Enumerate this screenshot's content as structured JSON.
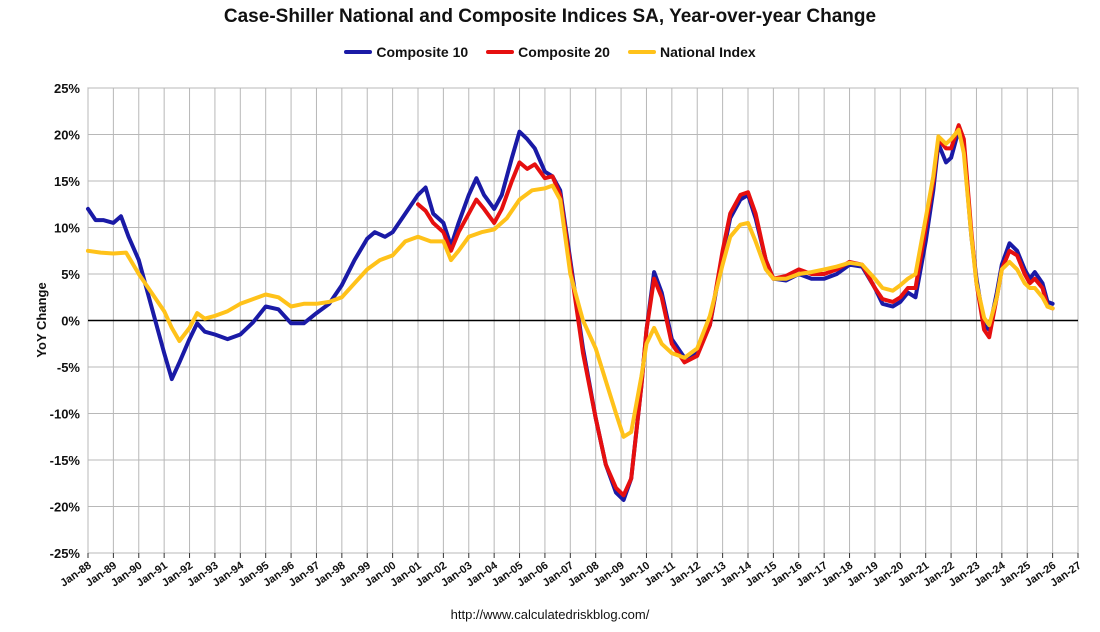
{
  "chart_data": {
    "type": "line",
    "title": "Case-Shiller National and Composite Indices SA, Year-over-year Change",
    "ylabel": "YoY Change",
    "xlabel": "",
    "source": "http://www.calculatedriskblog.com/",
    "ylim": [
      -25,
      25
    ],
    "xlim": [
      1988.0,
      2027.0
    ],
    "y_ticks": [
      "25%",
      "20%",
      "15%",
      "10%",
      "5%",
      "0%",
      "-5%",
      "-10%",
      "-15%",
      "-20%",
      "-25%"
    ],
    "x_ticks": [
      "Jan-88",
      "Jan-89",
      "Jan-90",
      "Jan-91",
      "Jan-92",
      "Jan-93",
      "Jan-94",
      "Jan-95",
      "Jan-96",
      "Jan-97",
      "Jan-98",
      "Jan-99",
      "Jan-00",
      "Jan-01",
      "Jan-02",
      "Jan-03",
      "Jan-04",
      "Jan-05",
      "Jan-06",
      "Jan-07",
      "Jan-08",
      "Jan-09",
      "Jan-10",
      "Jan-11",
      "Jan-12",
      "Jan-13",
      "Jan-14",
      "Jan-15",
      "Jan-16",
      "Jan-17",
      "Jan-18",
      "Jan-19",
      "Jan-20",
      "Jan-21",
      "Jan-22",
      "Jan-23",
      "Jan-24",
      "Jan-25",
      "Jan-26",
      "Jan-27"
    ],
    "grid": true,
    "legend_position": "top-center",
    "series": [
      {
        "name": "Composite 10",
        "color": "#1a1aa6",
        "points": [
          [
            1988.0,
            12.0
          ],
          [
            1988.3,
            10.8
          ],
          [
            1988.6,
            10.8
          ],
          [
            1989.0,
            10.5
          ],
          [
            1989.3,
            11.2
          ],
          [
            1989.6,
            9.0
          ],
          [
            1990.0,
            6.5
          ],
          [
            1990.3,
            3.5
          ],
          [
            1990.6,
            0.5
          ],
          [
            1991.0,
            -3.5
          ],
          [
            1991.3,
            -6.3
          ],
          [
            1991.6,
            -4.5
          ],
          [
            1992.0,
            -2.0
          ],
          [
            1992.3,
            -0.3
          ],
          [
            1992.6,
            -1.2
          ],
          [
            1993.0,
            -1.5
          ],
          [
            1993.5,
            -2.0
          ],
          [
            1994.0,
            -1.5
          ],
          [
            1994.5,
            -0.2
          ],
          [
            1995.0,
            1.5
          ],
          [
            1995.5,
            1.2
          ],
          [
            1996.0,
            -0.3
          ],
          [
            1996.5,
            -0.3
          ],
          [
            1997.0,
            0.8
          ],
          [
            1997.5,
            1.8
          ],
          [
            1998.0,
            3.8
          ],
          [
            1998.5,
            6.5
          ],
          [
            1999.0,
            8.8
          ],
          [
            1999.3,
            9.5
          ],
          [
            1999.7,
            9.0
          ],
          [
            2000.0,
            9.5
          ],
          [
            2000.5,
            11.5
          ],
          [
            2001.0,
            13.5
          ],
          [
            2001.3,
            14.3
          ],
          [
            2001.6,
            11.5
          ],
          [
            2002.0,
            10.5
          ],
          [
            2002.3,
            8.0
          ],
          [
            2002.6,
            10.5
          ],
          [
            2003.0,
            13.5
          ],
          [
            2003.3,
            15.3
          ],
          [
            2003.6,
            13.5
          ],
          [
            2004.0,
            12.0
          ],
          [
            2004.3,
            13.5
          ],
          [
            2004.7,
            17.5
          ],
          [
            2005.0,
            20.3
          ],
          [
            2005.3,
            19.5
          ],
          [
            2005.6,
            18.5
          ],
          [
            2006.0,
            16.0
          ],
          [
            2006.3,
            15.5
          ],
          [
            2006.6,
            14.0
          ],
          [
            2007.0,
            6.5
          ],
          [
            2007.5,
            -3.0
          ],
          [
            2008.0,
            -10.5
          ],
          [
            2008.4,
            -15.5
          ],
          [
            2008.8,
            -18.5
          ],
          [
            2009.1,
            -19.3
          ],
          [
            2009.4,
            -17.0
          ],
          [
            2009.8,
            -7.0
          ],
          [
            2010.0,
            -1.0
          ],
          [
            2010.3,
            5.2
          ],
          [
            2010.6,
            3.0
          ],
          [
            2011.0,
            -2.0
          ],
          [
            2011.5,
            -4.0
          ],
          [
            2012.0,
            -3.5
          ],
          [
            2012.5,
            -0.5
          ],
          [
            2013.0,
            7.0
          ],
          [
            2013.3,
            11.0
          ],
          [
            2013.7,
            13.0
          ],
          [
            2014.0,
            13.5
          ],
          [
            2014.3,
            11.0
          ],
          [
            2014.7,
            6.5
          ],
          [
            2015.0,
            4.5
          ],
          [
            2015.5,
            4.3
          ],
          [
            2016.0,
            5.0
          ],
          [
            2016.5,
            4.5
          ],
          [
            2017.0,
            4.5
          ],
          [
            2017.5,
            5.0
          ],
          [
            2018.0,
            6.0
          ],
          [
            2018.5,
            5.8
          ],
          [
            2019.0,
            3.5
          ],
          [
            2019.3,
            1.8
          ],
          [
            2019.7,
            1.5
          ],
          [
            2020.0,
            2.0
          ],
          [
            2020.3,
            3.0
          ],
          [
            2020.6,
            2.5
          ],
          [
            2021.0,
            8.5
          ],
          [
            2021.3,
            14.0
          ],
          [
            2021.5,
            19.0
          ],
          [
            2021.8,
            17.0
          ],
          [
            2022.0,
            17.5
          ],
          [
            2022.3,
            20.5
          ],
          [
            2022.5,
            18.5
          ],
          [
            2022.8,
            9.0
          ],
          [
            2023.0,
            4.5
          ],
          [
            2023.3,
            -0.5
          ],
          [
            2023.5,
            -1.0
          ],
          [
            2023.8,
            3.0
          ],
          [
            2024.0,
            6.0
          ],
          [
            2024.3,
            8.3
          ],
          [
            2024.6,
            7.5
          ],
          [
            2024.9,
            5.5
          ],
          [
            2025.1,
            4.5
          ],
          [
            2025.3,
            5.2
          ],
          [
            2025.6,
            4.0
          ],
          [
            2025.8,
            2.0
          ],
          [
            2026.0,
            1.8
          ]
        ]
      },
      {
        "name": "Composite 20",
        "color": "#e60f0f",
        "points": [
          [
            2001.0,
            12.5
          ],
          [
            2001.3,
            11.8
          ],
          [
            2001.6,
            10.5
          ],
          [
            2002.0,
            9.5
          ],
          [
            2002.3,
            7.5
          ],
          [
            2002.6,
            9.5
          ],
          [
            2003.0,
            11.5
          ],
          [
            2003.3,
            13.0
          ],
          [
            2003.6,
            12.0
          ],
          [
            2004.0,
            10.5
          ],
          [
            2004.3,
            12.0
          ],
          [
            2004.7,
            15.0
          ],
          [
            2005.0,
            17.0
          ],
          [
            2005.3,
            16.3
          ],
          [
            2005.6,
            16.8
          ],
          [
            2006.0,
            15.3
          ],
          [
            2006.3,
            15.5
          ],
          [
            2006.6,
            13.5
          ],
          [
            2007.0,
            6.0
          ],
          [
            2007.5,
            -3.5
          ],
          [
            2008.0,
            -10.5
          ],
          [
            2008.4,
            -15.5
          ],
          [
            2008.8,
            -18.0
          ],
          [
            2009.1,
            -18.8
          ],
          [
            2009.4,
            -17.0
          ],
          [
            2009.8,
            -7.0
          ],
          [
            2010.0,
            -1.0
          ],
          [
            2010.3,
            4.5
          ],
          [
            2010.6,
            2.5
          ],
          [
            2011.0,
            -2.5
          ],
          [
            2011.5,
            -4.5
          ],
          [
            2012.0,
            -3.8
          ],
          [
            2012.5,
            -0.5
          ],
          [
            2013.0,
            7.5
          ],
          [
            2013.3,
            11.5
          ],
          [
            2013.7,
            13.5
          ],
          [
            2014.0,
            13.8
          ],
          [
            2014.3,
            11.5
          ],
          [
            2014.7,
            6.5
          ],
          [
            2015.0,
            4.5
          ],
          [
            2015.5,
            4.8
          ],
          [
            2016.0,
            5.5
          ],
          [
            2016.5,
            5.0
          ],
          [
            2017.0,
            5.0
          ],
          [
            2017.5,
            5.5
          ],
          [
            2018.0,
            6.3
          ],
          [
            2018.5,
            6.0
          ],
          [
            2019.0,
            3.5
          ],
          [
            2019.3,
            2.3
          ],
          [
            2019.7,
            2.0
          ],
          [
            2020.0,
            2.5
          ],
          [
            2020.3,
            3.5
          ],
          [
            2020.6,
            3.5
          ],
          [
            2021.0,
            10.0
          ],
          [
            2021.3,
            15.0
          ],
          [
            2021.5,
            19.5
          ],
          [
            2021.8,
            18.5
          ],
          [
            2022.0,
            18.5
          ],
          [
            2022.3,
            21.0
          ],
          [
            2022.5,
            19.5
          ],
          [
            2022.8,
            9.5
          ],
          [
            2023.0,
            4.0
          ],
          [
            2023.3,
            -1.0
          ],
          [
            2023.5,
            -1.8
          ],
          [
            2023.8,
            2.5
          ],
          [
            2024.0,
            5.5
          ],
          [
            2024.3,
            7.5
          ],
          [
            2024.6,
            7.0
          ],
          [
            2024.9,
            5.0
          ],
          [
            2025.1,
            4.0
          ],
          [
            2025.3,
            4.5
          ],
          [
            2025.6,
            3.5
          ],
          [
            2025.8,
            1.5
          ],
          [
            2026.0,
            1.3
          ]
        ]
      },
      {
        "name": "National Index",
        "color": "#ffc21a",
        "points": [
          [
            1988.0,
            7.5
          ],
          [
            1988.5,
            7.3
          ],
          [
            1989.0,
            7.2
          ],
          [
            1989.5,
            7.3
          ],
          [
            1990.0,
            5.0
          ],
          [
            1990.5,
            3.0
          ],
          [
            1991.0,
            1.0
          ],
          [
            1991.3,
            -0.8
          ],
          [
            1991.6,
            -2.2
          ],
          [
            1992.0,
            -0.8
          ],
          [
            1992.3,
            0.8
          ],
          [
            1992.6,
            0.2
          ],
          [
            1993.0,
            0.5
          ],
          [
            1993.5,
            1.0
          ],
          [
            1994.0,
            1.8
          ],
          [
            1994.5,
            2.3
          ],
          [
            1995.0,
            2.8
          ],
          [
            1995.5,
            2.5
          ],
          [
            1996.0,
            1.5
          ],
          [
            1996.5,
            1.8
          ],
          [
            1997.0,
            1.8
          ],
          [
            1997.5,
            2.0
          ],
          [
            1998.0,
            2.5
          ],
          [
            1998.5,
            4.0
          ],
          [
            1999.0,
            5.5
          ],
          [
            1999.5,
            6.5
          ],
          [
            2000.0,
            7.0
          ],
          [
            2000.5,
            8.5
          ],
          [
            2001.0,
            9.0
          ],
          [
            2001.5,
            8.5
          ],
          [
            2002.0,
            8.5
          ],
          [
            2002.3,
            6.5
          ],
          [
            2002.6,
            7.5
          ],
          [
            2003.0,
            9.0
          ],
          [
            2003.5,
            9.5
          ],
          [
            2004.0,
            9.8
          ],
          [
            2004.5,
            11.0
          ],
          [
            2005.0,
            13.0
          ],
          [
            2005.5,
            14.0
          ],
          [
            2006.0,
            14.2
          ],
          [
            2006.3,
            14.5
          ],
          [
            2006.6,
            13.0
          ],
          [
            2007.0,
            5.0
          ],
          [
            2007.5,
            0.0
          ],
          [
            2008.0,
            -3.0
          ],
          [
            2008.4,
            -6.5
          ],
          [
            2008.8,
            -10.0
          ],
          [
            2009.1,
            -12.5
          ],
          [
            2009.4,
            -12.0
          ],
          [
            2009.8,
            -6.0
          ],
          [
            2010.0,
            -2.5
          ],
          [
            2010.3,
            -0.8
          ],
          [
            2010.6,
            -2.5
          ],
          [
            2011.0,
            -3.5
          ],
          [
            2011.5,
            -4.0
          ],
          [
            2012.0,
            -3.0
          ],
          [
            2012.5,
            0.5
          ],
          [
            2013.0,
            6.0
          ],
          [
            2013.3,
            9.0
          ],
          [
            2013.7,
            10.3
          ],
          [
            2014.0,
            10.5
          ],
          [
            2014.3,
            8.5
          ],
          [
            2014.7,
            5.5
          ],
          [
            2015.0,
            4.5
          ],
          [
            2015.5,
            4.5
          ],
          [
            2016.0,
            5.0
          ],
          [
            2016.5,
            5.2
          ],
          [
            2017.0,
            5.5
          ],
          [
            2017.5,
            5.8
          ],
          [
            2018.0,
            6.2
          ],
          [
            2018.5,
            6.0
          ],
          [
            2019.0,
            4.5
          ],
          [
            2019.3,
            3.5
          ],
          [
            2019.7,
            3.2
          ],
          [
            2020.0,
            3.8
          ],
          [
            2020.3,
            4.5
          ],
          [
            2020.6,
            5.0
          ],
          [
            2021.0,
            11.0
          ],
          [
            2021.3,
            15.5
          ],
          [
            2021.5,
            19.8
          ],
          [
            2021.8,
            19.0
          ],
          [
            2022.0,
            19.5
          ],
          [
            2022.3,
            20.5
          ],
          [
            2022.5,
            18.0
          ],
          [
            2022.8,
            9.0
          ],
          [
            2023.0,
            4.0
          ],
          [
            2023.3,
            0.3
          ],
          [
            2023.5,
            -0.5
          ],
          [
            2023.8,
            2.5
          ],
          [
            2024.0,
            5.5
          ],
          [
            2024.3,
            6.3
          ],
          [
            2024.6,
            5.5
          ],
          [
            2024.9,
            4.0
          ],
          [
            2025.1,
            3.5
          ],
          [
            2025.3,
            3.5
          ],
          [
            2025.6,
            2.5
          ],
          [
            2025.8,
            1.5
          ],
          [
            2026.0,
            1.3
          ]
        ]
      }
    ]
  }
}
